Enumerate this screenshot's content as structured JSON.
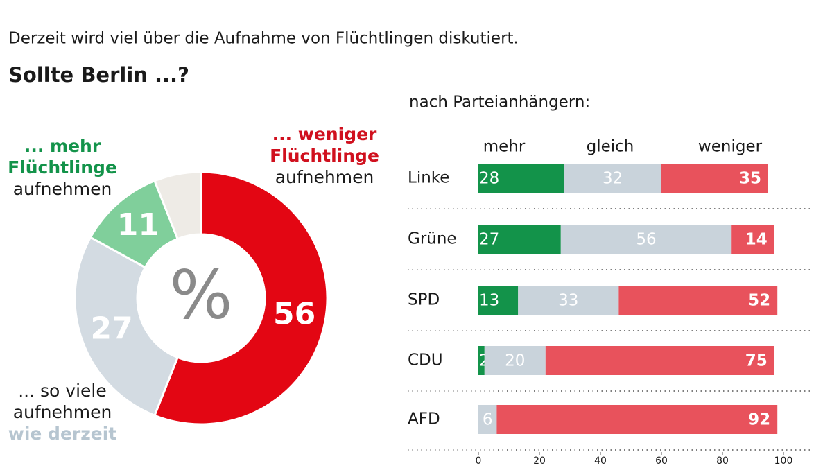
{
  "subtitle": "Derzeit wird viel über die Aufnahme von Flüchtlingen diskutiert.",
  "question": "Sollte Berlin ...?",
  "chart_data": [
    {
      "type": "pie",
      "center_label": "%",
      "values": [
        56,
        27,
        11,
        6
      ],
      "colors": [
        "#e30613",
        "#d3dbe2",
        "#80cf9b",
        "#eeebe6"
      ],
      "value_labels": [
        "56",
        "27",
        "11",
        null
      ],
      "label_colors": [
        "#d0101e",
        "#b6c5d0",
        "#13934a",
        null
      ],
      "labels": [
        [
          {
            "text": "... weniger",
            "accent": true
          },
          {
            "text": "Flüchtlinge",
            "accent": true
          },
          {
            "text": "aufnehmen",
            "accent": false
          }
        ],
        [
          {
            "text": "... so viele",
            "accent": false
          },
          {
            "text": "aufnehmen",
            "accent": false
          },
          {
            "text": "wie derzeit",
            "accent": true
          }
        ],
        [
          {
            "text": "... mehr",
            "accent": true
          },
          {
            "text": "Flüchtlinge",
            "accent": true
          },
          {
            "text": "aufnehmen",
            "accent": false
          }
        ],
        null
      ]
    },
    {
      "type": "stacked-bar",
      "title": "nach Parteianhängern:",
      "categories": [
        "Linke",
        "Grüne",
        "SPD",
        "CDU",
        "AFD"
      ],
      "series": [
        {
          "name": "mehr",
          "color": "#13934a",
          "values": [
            28,
            27,
            13,
            2,
            null
          ]
        },
        {
          "name": "gleich",
          "color": "#c9d3db",
          "values": [
            32,
            56,
            33,
            20,
            6
          ]
        },
        {
          "name": "weniger",
          "color": "#e8525c",
          "values": [
            35,
            14,
            52,
            75,
            92
          ]
        }
      ],
      "xlim": [
        0,
        100
      ],
      "xticks": [
        0,
        20,
        40,
        60,
        80,
        100
      ]
    }
  ]
}
